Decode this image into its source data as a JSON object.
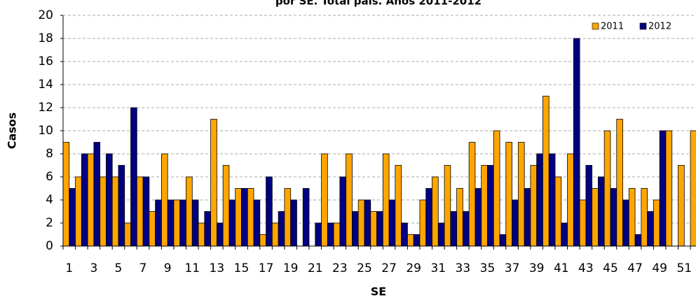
{
  "chart_data": {
    "type": "bar",
    "title": "por SE. Total país. Años 2011-2012",
    "x_label": "SE",
    "y_label": "Casos",
    "categories": [
      1,
      null,
      3,
      null,
      5,
      null,
      7,
      null,
      9,
      null,
      11,
      null,
      13,
      null,
      15,
      null,
      17,
      null,
      19,
      null,
      21,
      null,
      23,
      null,
      25,
      null,
      27,
      null,
      29,
      null,
      31,
      null,
      33,
      null,
      35,
      null,
      37,
      null,
      39,
      null,
      41,
      null,
      43,
      null,
      45,
      null,
      47,
      null,
      49,
      null,
      51,
      null
    ],
    "series": [
      {
        "name": "2011",
        "color": "#FFA500",
        "values": [
          9,
          6,
          8,
          6,
          6,
          2,
          6,
          3,
          8,
          4,
          6,
          2,
          11,
          7,
          5,
          5,
          1,
          2,
          5,
          0,
          0,
          8,
          2,
          8,
          4,
          3,
          8,
          7,
          1,
          4,
          6,
          7,
          5,
          9,
          7,
          10,
          9,
          9,
          7,
          13,
          6,
          8,
          4,
          5,
          10,
          11,
          5,
          5,
          4,
          10,
          7,
          10
        ]
      },
      {
        "name": "2012",
        "color": "#000080",
        "values": [
          5,
          8,
          9,
          8,
          7,
          12,
          6,
          4,
          4,
          4,
          4,
          3,
          2,
          4,
          5,
          4,
          6,
          3,
          4,
          5,
          2,
          2,
          6,
          3,
          4,
          3,
          4,
          2,
          1,
          5,
          2,
          3,
          3,
          5,
          7,
          1,
          4,
          5,
          8,
          8,
          2,
          18,
          7,
          6,
          5,
          4,
          1,
          3,
          10,
          0,
          0,
          null
        ]
      }
    ],
    "ylim": [
      0,
      20
    ],
    "yticks": [
      0,
      2,
      4,
      6,
      8,
      10,
      12,
      14,
      16,
      18,
      20
    ],
    "grid": true,
    "legend": "top-right"
  }
}
